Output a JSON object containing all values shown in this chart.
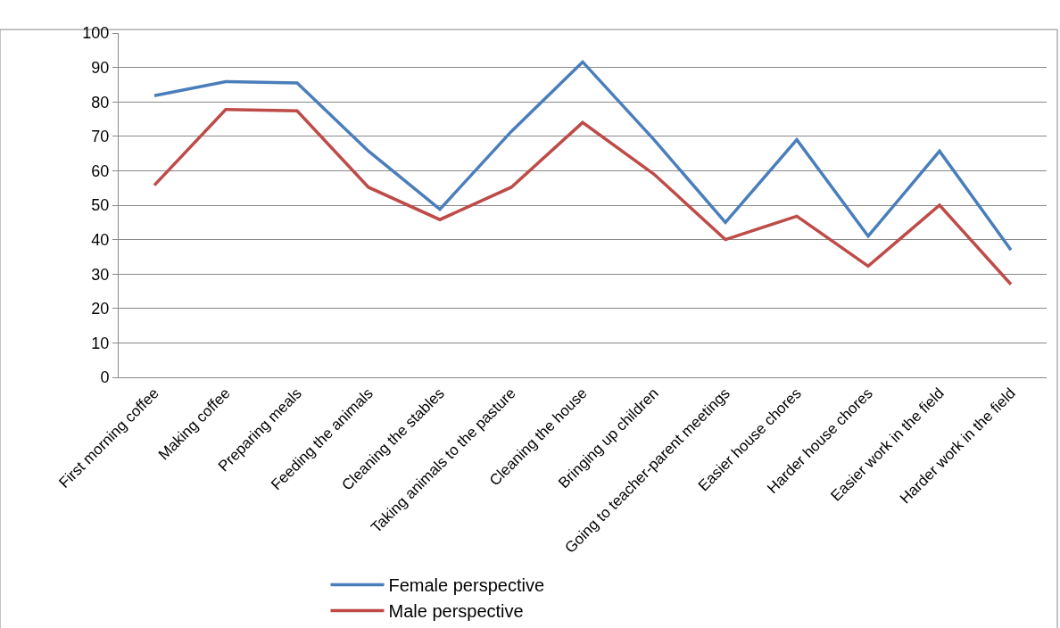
{
  "chart_data": {
    "type": "line",
    "categories": [
      "First morning coffee",
      "Making coffee",
      "Preparing meals",
      "Feeding the animals",
      "Cleaning the stables",
      "Taking animals to the pasture",
      "Cleaning the house",
      "Bringing up children",
      "Going to teacher-parent meetings",
      "Easier house chores",
      "Harder house chores",
      "Easier work in the field",
      "Harder work in the field"
    ],
    "series": [
      {
        "name": "Female perspective",
        "color": "#4a7ebb",
        "values": [
          81.8,
          85.9,
          85.5,
          65.7,
          48.8,
          71.4,
          91.6,
          69,
          45,
          69,
          41,
          65.7,
          37
        ]
      },
      {
        "name": "Male perspective",
        "color": "#be4b48",
        "values": [
          55.8,
          77.8,
          77.4,
          55.2,
          45.8,
          55.2,
          74,
          59,
          40,
          46.8,
          32.3,
          50,
          27
        ]
      }
    ],
    "ylim": [
      0,
      100
    ],
    "yticks": [
      0,
      10,
      20,
      30,
      40,
      50,
      60,
      70,
      80,
      90,
      100
    ],
    "grid": "y",
    "legend": "bottom",
    "marker": "none",
    "line_style": "solid"
  }
}
